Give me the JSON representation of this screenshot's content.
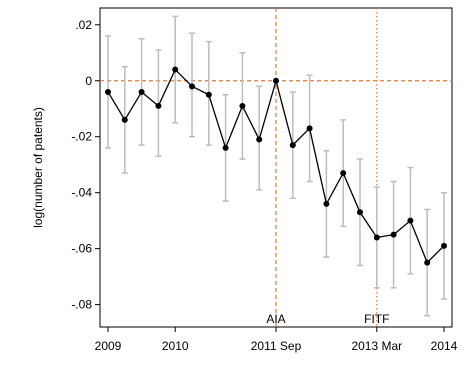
{
  "chart_data": {
    "type": "line",
    "title": "",
    "xlabel": "",
    "ylabel": "log(number of patents)",
    "ylim": [
      -0.088,
      0.026
    ],
    "grid": false,
    "legend": "none",
    "x_tick_labels": [
      {
        "x": 0,
        "label": "2009"
      },
      {
        "x": 4,
        "label": "2010"
      },
      {
        "x": 10,
        "label": "2011 Sep"
      },
      {
        "x": 16,
        "label": "2013 Mar"
      },
      {
        "x": 20,
        "label": "2014"
      }
    ],
    "y_ticks": [
      0.02,
      0,
      -0.02,
      -0.04,
      -0.06,
      -0.08
    ],
    "y_tick_labels": [
      ".02",
      "0",
      "-.02",
      "-.04",
      "-.06",
      "-.08"
    ],
    "reference_lines": [
      {
        "axis": "y",
        "value": 0,
        "color": "#e07a38",
        "style": "dashed"
      },
      {
        "axis": "x",
        "value": 10,
        "label": "AIA",
        "color": "#e07a38",
        "style": "dashed"
      },
      {
        "axis": "x",
        "value": 16,
        "label": "FITF",
        "color": "#e07a38",
        "style": "dotted"
      }
    ],
    "series": [
      {
        "values": [
          -0.004,
          -0.014,
          -0.004,
          -0.009,
          0.004,
          -0.002,
          -0.005,
          -0.024,
          -0.009,
          -0.021,
          0.0,
          -0.023,
          -0.017,
          -0.044,
          -0.033,
          -0.047,
          -0.056,
          -0.055,
          -0.05,
          -0.065,
          -0.059
        ],
        "ci_low": [
          -0.024,
          -0.033,
          -0.023,
          -0.027,
          -0.015,
          -0.02,
          -0.023,
          -0.043,
          -0.028,
          -0.039,
          null,
          -0.042,
          -0.036,
          -0.063,
          -0.052,
          -0.066,
          -0.074,
          -0.074,
          -0.069,
          -0.084,
          -0.078
        ],
        "ci_high": [
          0.016,
          0.005,
          0.015,
          0.011,
          0.023,
          0.017,
          0.014,
          -0.005,
          0.01,
          -0.002,
          null,
          -0.004,
          0.002,
          -0.025,
          -0.014,
          -0.028,
          -0.038,
          -0.036,
          -0.031,
          -0.046,
          -0.04
        ],
        "line_color": "#000000",
        "ci_color": "#bdbdbd"
      }
    ]
  }
}
